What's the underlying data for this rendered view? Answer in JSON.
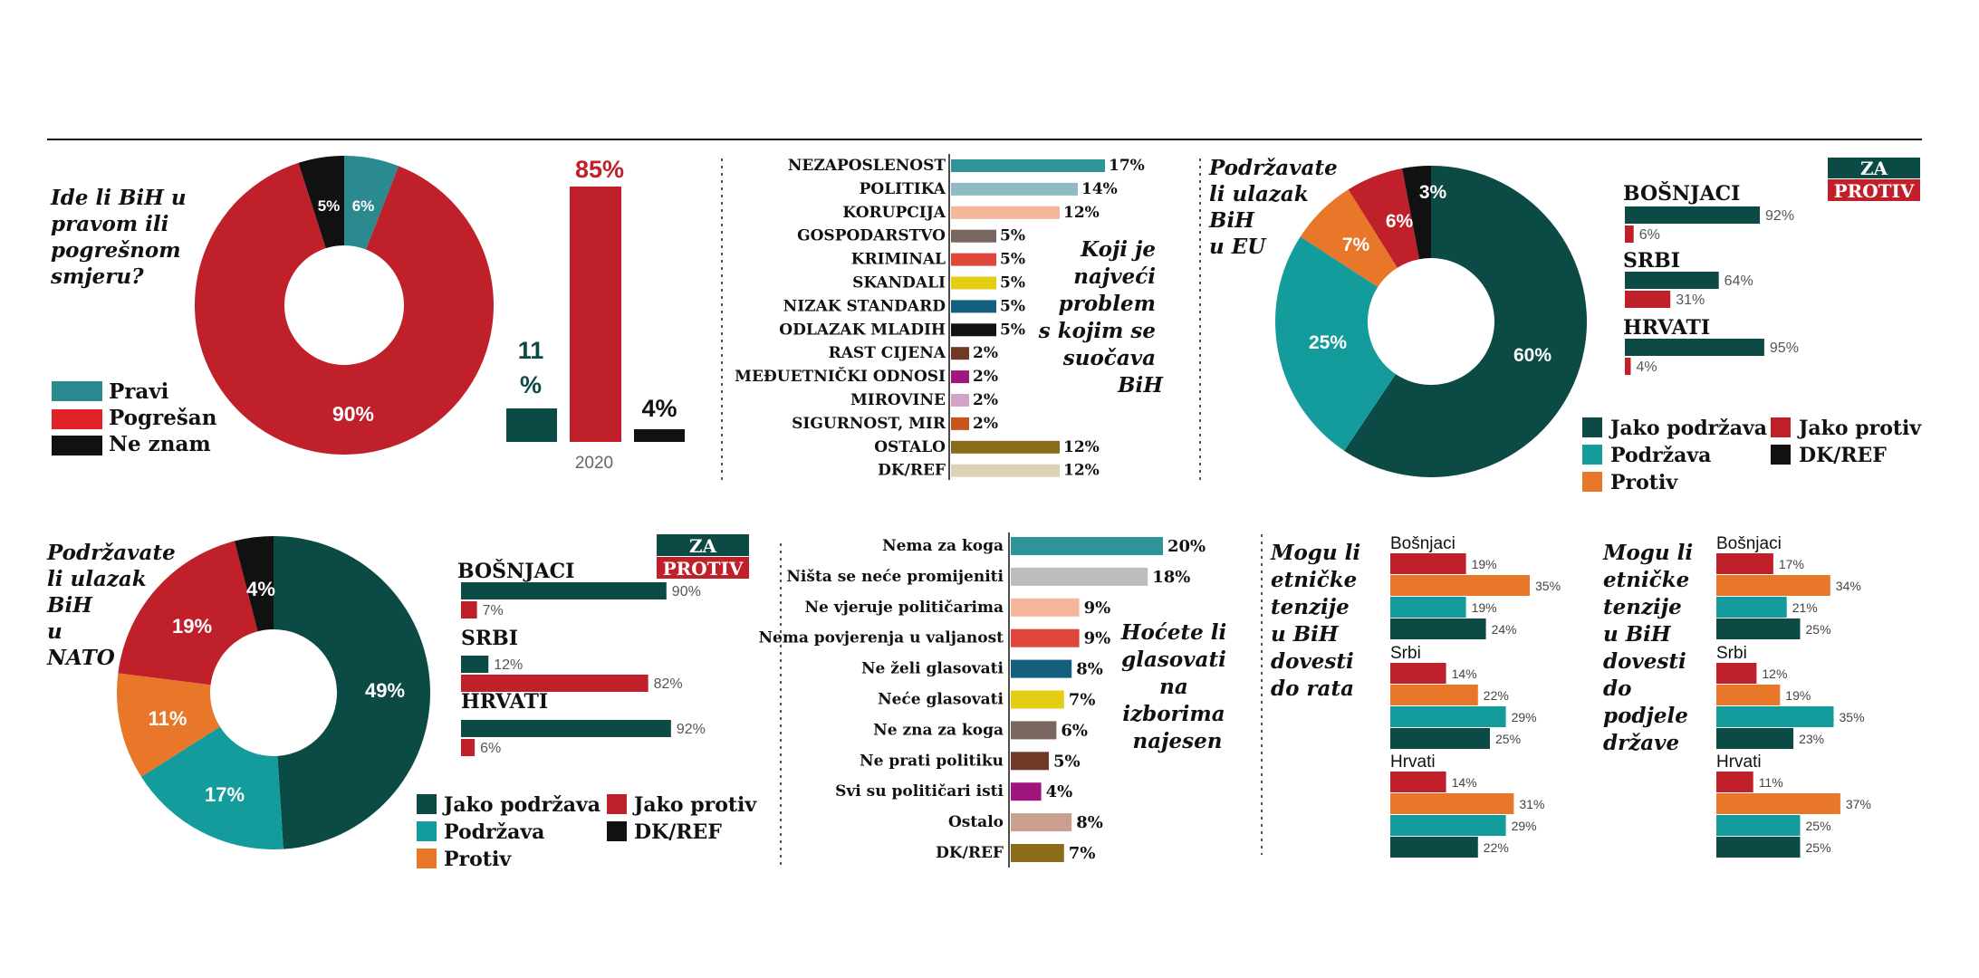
{
  "colors": {
    "dark_green": "#0b4a45",
    "teal": "#139c9b",
    "orange": "#e8772a",
    "red": "#c0202a",
    "black": "#111111",
    "pravi": "#2b8a90",
    "pogresan": "#e12128"
  },
  "panel1": {
    "question": [
      "Ide li BiH u",
      "pravom ili",
      "pogrešnom",
      "smjeru?"
    ],
    "legend": [
      "Pravi",
      "Pogrešan",
      "Ne znam"
    ],
    "donut_labels": [
      "6%",
      "90%",
      "5%"
    ],
    "bar_labels": [
      "11",
      "%",
      "85%",
      "4%"
    ],
    "year": "2020"
  },
  "panel2": {
    "question": [
      "Koji je",
      "najveći",
      "problem",
      "s kojim se",
      "suočava",
      "BiH"
    ],
    "value_labels": [
      "17%",
      "14%",
      "12%",
      "5%",
      "5%",
      "5%",
      "5%",
      "5%",
      "2%",
      "2%",
      "2%",
      "2%",
      "12%",
      "12%"
    ]
  },
  "panel3": {
    "question": [
      "Podržavate",
      "li ulazak",
      "BiH",
      "u EU"
    ],
    "donut_labels": [
      "60%",
      "25%",
      "7%",
      "6%",
      "3%"
    ],
    "za": "ZA",
    "protiv": "PROTIV",
    "groups": [
      "BOŠNJACI",
      "SRBI",
      "HRVATI"
    ],
    "group_labels": [
      "92%",
      "6%",
      "64%",
      "31%",
      "95%",
      "4%"
    ],
    "legend": [
      "Jako podržava",
      "Jako protiv",
      "Podržava",
      "DK/REF",
      "Protiv"
    ]
  },
  "panel4": {
    "question": [
      "Podržavate",
      "li ulazak",
      "BiH",
      "u",
      "NATO"
    ],
    "donut_labels": [
      "49%",
      "17%",
      "11%",
      "19%",
      "4%"
    ],
    "za": "ZA",
    "protiv": "PROTIV",
    "groups": [
      "BOŠNJACI",
      "SRBI",
      "HRVATI"
    ],
    "group_labels": [
      "90%",
      "7%",
      "12%",
      "82%",
      "92%",
      "6%"
    ],
    "legend": [
      "Jako podržava",
      "Jako protiv",
      "Podržava",
      "DK/REF",
      "Protiv"
    ]
  },
  "panel5": {
    "question": [
      "Hoćete li",
      "glasovati",
      "na",
      "izborima",
      "najesen"
    ],
    "value_labels": [
      "20%",
      "18%",
      "9%",
      "9%",
      "8%",
      "7%",
      "6%",
      "5%",
      "4%",
      "8%",
      "7%"
    ]
  },
  "panel6": {
    "question": [
      "Mogu li",
      "etničke",
      "tenzije",
      "u BiH",
      "dovesti",
      "do rata"
    ],
    "groups": [
      "Bošnjaci",
      "Srbi",
      "Hrvati"
    ],
    "value_labels": [
      "19%",
      "35%",
      "19%",
      "24%",
      "14%",
      "22%",
      "29%",
      "25%",
      "14%",
      "31%",
      "29%",
      "22%"
    ]
  },
  "panel7": {
    "question": [
      "Mogu li",
      "etničke",
      "tenzije",
      "u BiH",
      "dovesti",
      "do",
      "podjele",
      "države"
    ],
    "groups": [
      "Bošnjaci",
      "Srbi",
      "Hrvati"
    ],
    "value_labels": [
      "17%",
      "34%",
      "21%",
      "25%",
      "12%",
      "19%",
      "35%",
      "23%",
      "11%",
      "37%",
      "25%",
      "25%"
    ]
  },
  "chart_data": [
    {
      "type": "pie",
      "labels": [
        "Pravi",
        "Pogrešan",
        "Ne znam"
      ],
      "values": [
        6,
        90,
        5
      ],
      "colors": [
        "#2b8a90",
        "#c0202a",
        "#111111"
      ]
    },
    {
      "type": "bar",
      "categories": [
        "Pravi",
        "Pogrešan",
        "Ne znam"
      ],
      "values": [
        11,
        85,
        4
      ],
      "xlabel": "2020",
      "colors": [
        "#0b4a45",
        "#c0202a",
        "#111111"
      ]
    },
    {
      "type": "bar",
      "orientation": "horizontal",
      "categories": [
        "NEZAPOSLENOST",
        "POLITIKA",
        "KORUPCIJA",
        "GOSPODARSTVO",
        "KRIMINAL",
        "SKANDALI",
        "NIZAK STANDARD",
        "ODLAZAK MLADIH",
        "RAST CIJENA",
        "MEĐUETNIČKI ODNOSI",
        "MIROVINE",
        "SIGURNOST, MIR",
        "OSTALO",
        "DK/REF"
      ],
      "values": [
        17,
        14,
        12,
        5,
        5,
        5,
        5,
        5,
        2,
        2,
        2,
        2,
        12,
        12
      ],
      "colors": [
        "#2e9499",
        "#8fbcc0",
        "#f5b79b",
        "#7a6660",
        "#e0463c",
        "#e4cd13",
        "#155f7e",
        "#111111",
        "#6e3a26",
        "#a1167c",
        "#d4a3c8",
        "#c8561b",
        "#8a6b19",
        "#ddd2b5"
      ]
    },
    {
      "type": "pie",
      "labels": [
        "Jako podržava",
        "Podržava",
        "Protiv",
        "Jako protiv",
        "DK/REF"
      ],
      "values": [
        60,
        25,
        7,
        6,
        3
      ]
    },
    {
      "type": "bar",
      "orientation": "horizontal",
      "categories": [
        "BOŠNJACI",
        "SRBI",
        "HRVATI"
      ],
      "series": [
        {
          "name": "ZA",
          "values": [
            92,
            64,
            95
          ]
        },
        {
          "name": "PROTIV",
          "values": [
            6,
            31,
            4
          ]
        }
      ]
    },
    {
      "type": "pie",
      "labels": [
        "Jako podržava",
        "Podržava",
        "Protiv",
        "Jako protiv",
        "DK/REF"
      ],
      "values": [
        49,
        17,
        11,
        19,
        4
      ]
    },
    {
      "type": "bar",
      "orientation": "horizontal",
      "categories": [
        "BOŠNJACI",
        "SRBI",
        "HRVATI"
      ],
      "series": [
        {
          "name": "ZA",
          "values": [
            90,
            12,
            92
          ]
        },
        {
          "name": "PROTIV",
          "values": [
            7,
            82,
            6
          ]
        }
      ]
    },
    {
      "type": "bar",
      "orientation": "horizontal",
      "categories": [
        "Nema za koga",
        "Ništa se neće promijeniti",
        "Ne vjeruje političarima",
        "Nema povjerenja u valjanost",
        "Ne želi glasovati",
        "Neće glasovati",
        "Ne zna za koga",
        "Ne prati politiku",
        "Svi su političari isti",
        "Ostalo",
        "DK/REF"
      ],
      "values": [
        20,
        18,
        9,
        9,
        8,
        7,
        6,
        5,
        4,
        8,
        7
      ],
      "colors": [
        "#2e9499",
        "#bdbdbd",
        "#f5b79b",
        "#e0463c",
        "#155f7e",
        "#e4cd13",
        "#7a6660",
        "#6e3a26",
        "#a1167c",
        "#c9a08f",
        "#8a6b19"
      ]
    },
    {
      "type": "bar",
      "orientation": "horizontal",
      "categories": [
        "Bošnjaci",
        "Srbi",
        "Hrvati"
      ],
      "series": [
        {
          "values": [
            19,
            14,
            14
          ]
        },
        {
          "values": [
            35,
            22,
            31
          ]
        },
        {
          "values": [
            19,
            29,
            29
          ]
        },
        {
          "values": [
            24,
            25,
            22
          ]
        }
      ]
    },
    {
      "type": "bar",
      "orientation": "horizontal",
      "categories": [
        "Bošnjaci",
        "Srbi",
        "Hrvati"
      ],
      "series": [
        {
          "values": [
            17,
            12,
            11
          ]
        },
        {
          "values": [
            34,
            19,
            37
          ]
        },
        {
          "values": [
            21,
            35,
            25
          ]
        },
        {
          "values": [
            25,
            23,
            25
          ]
        }
      ]
    }
  ]
}
